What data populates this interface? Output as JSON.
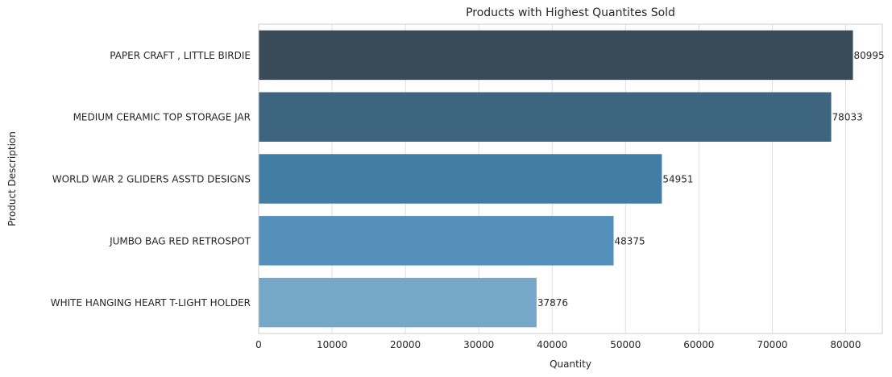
{
  "chart_data": {
    "type": "bar",
    "orientation": "horizontal",
    "title": "Products with Highest Quantites Sold",
    "xlabel": "Quantity",
    "ylabel": "Product Description",
    "categories": [
      "PAPER CRAFT , LITTLE BIRDIE",
      "MEDIUM CERAMIC TOP STORAGE JAR",
      "WORLD WAR 2 GLIDERS ASSTD DESIGNS",
      "JUMBO BAG RED RETROSPOT",
      "WHITE HANGING HEART T-LIGHT HOLDER"
    ],
    "values": [
      80995,
      78033,
      54951,
      48375,
      37876
    ],
    "data_labels": [
      "80995",
      "78033",
      "54951",
      "48375",
      "37876"
    ],
    "xlim": [
      0,
      85000
    ],
    "xticks": [
      0,
      10000,
      20000,
      30000,
      40000,
      50000,
      60000,
      70000,
      80000
    ],
    "grid": true,
    "colors": [
      "#394b59",
      "#3d6580",
      "#427da3",
      "#5590bb",
      "#76a7c8"
    ]
  }
}
